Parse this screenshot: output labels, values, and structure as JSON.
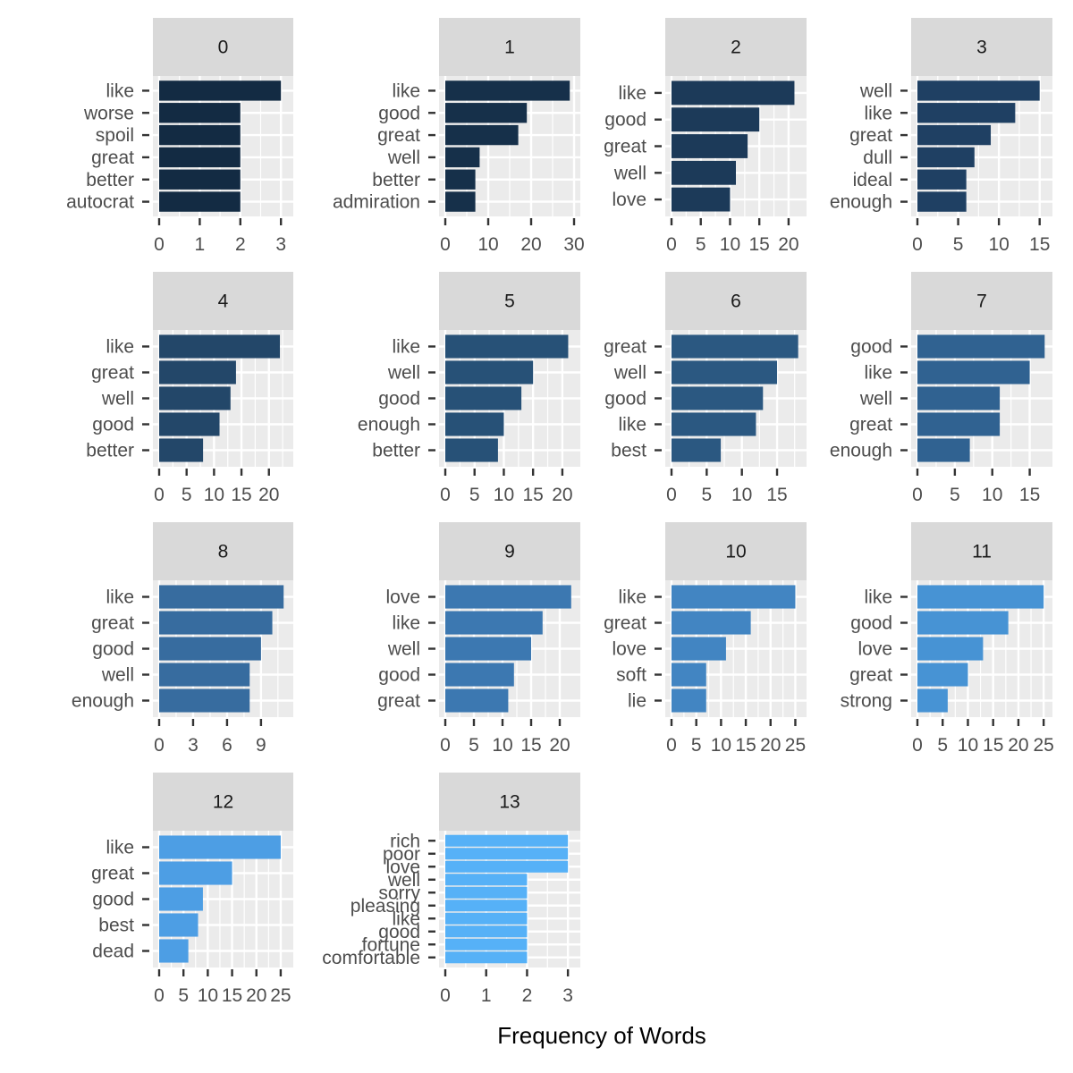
{
  "chart_data": {
    "type": "bar",
    "orientation": "horizontal",
    "layout": "facet-grid",
    "facet_columns": 4,
    "xlabel": "Frequency of Words",
    "ylabel": "",
    "grid": true,
    "panel_background": "#ebebeb",
    "strip_background": "#d9d9d9",
    "bar_color_gradient": [
      "#132b43",
      "#56b1f7"
    ],
    "panels": [
      {
        "label": "0",
        "color": "#132b43",
        "xlim": [
          0,
          3.15
        ],
        "ticks": [
          0,
          1,
          2,
          3
        ],
        "tick_labels": [
          "0",
          "1",
          "2",
          "3"
        ],
        "categories": [
          "like",
          "worse",
          "spoil",
          "great",
          "better",
          "autocrat"
        ],
        "values": [
          3,
          2,
          2,
          2,
          2,
          2
        ]
      },
      {
        "label": "1",
        "color": "#16304a",
        "xlim": [
          0,
          30
        ],
        "ticks": [
          0,
          10,
          20,
          30
        ],
        "tick_labels": [
          "0",
          "10",
          "20",
          "30"
        ],
        "categories": [
          "like",
          "good",
          "great",
          "well",
          "better",
          "admiration"
        ],
        "values": [
          29,
          19,
          17,
          8,
          7,
          7
        ]
      },
      {
        "label": "2",
        "color": "#1c3a59",
        "xlim": [
          0,
          22
        ],
        "ticks": [
          0,
          5,
          10,
          15,
          20
        ],
        "tick_labels": [
          "0",
          "5",
          "10",
          "15",
          "20"
        ],
        "categories": [
          "like",
          "good",
          "great",
          "well",
          "love"
        ],
        "values": [
          21,
          15,
          13,
          11,
          10
        ]
      },
      {
        "label": "3",
        "color": "#1f4063",
        "xlim": [
          0,
          15.8
        ],
        "ticks": [
          0,
          5,
          10,
          15
        ],
        "tick_labels": [
          "0",
          "5",
          "10",
          "15"
        ],
        "categories": [
          "well",
          "like",
          "great",
          "dull",
          "ideal",
          "enough"
        ],
        "values": [
          15,
          12,
          9,
          7,
          6,
          6
        ]
      },
      {
        "label": "4",
        "color": "#234769",
        "xlim": [
          0,
          23.3
        ],
        "ticks": [
          0,
          5,
          10,
          15,
          20
        ],
        "tick_labels": [
          "0",
          "5",
          "10",
          "15",
          "20"
        ],
        "categories": [
          "like",
          "great",
          "well",
          "good",
          "better"
        ],
        "values": [
          22,
          14,
          13,
          11,
          8
        ]
      },
      {
        "label": "5",
        "color": "#275177",
        "xlim": [
          0,
          22
        ],
        "ticks": [
          0,
          5,
          10,
          15,
          20
        ],
        "tick_labels": [
          "0",
          "5",
          "10",
          "15",
          "20"
        ],
        "categories": [
          "like",
          "well",
          "good",
          "enough",
          "better"
        ],
        "values": [
          21,
          15,
          13,
          10,
          9
        ]
      },
      {
        "label": "6",
        "color": "#2b5881",
        "xlim": [
          0,
          18.3
        ],
        "ticks": [
          0,
          5,
          10,
          15
        ],
        "tick_labels": [
          "0",
          "5",
          "10",
          "15"
        ],
        "categories": [
          "great",
          "well",
          "good",
          "like",
          "best"
        ],
        "values": [
          18,
          15,
          13,
          12,
          7
        ]
      },
      {
        "label": "7",
        "color": "#306291",
        "xlim": [
          0,
          17.2
        ],
        "ticks": [
          0,
          5,
          10,
          15
        ],
        "tick_labels": [
          "0",
          "5",
          "10",
          "15"
        ],
        "categories": [
          "good",
          "like",
          "well",
          "great",
          "enough"
        ],
        "values": [
          17,
          15,
          11,
          11,
          7
        ]
      },
      {
        "label": "8",
        "color": "#376c9f",
        "xlim": [
          0,
          11.3
        ],
        "ticks": [
          0,
          3,
          6,
          9
        ],
        "tick_labels": [
          "0",
          "3",
          "6",
          "9"
        ],
        "categories": [
          "like",
          "great",
          "good",
          "well",
          "enough"
        ],
        "values": [
          11,
          10,
          9,
          8,
          8
        ]
      },
      {
        "label": "9",
        "color": "#3c78b1",
        "xlim": [
          0,
          22.5
        ],
        "ticks": [
          0,
          5,
          10,
          15,
          20
        ],
        "tick_labels": [
          "0",
          "5",
          "10",
          "15",
          "20"
        ],
        "categories": [
          "love",
          "like",
          "well",
          "good",
          "great"
        ],
        "values": [
          22,
          17,
          15,
          12,
          11
        ]
      },
      {
        "label": "10",
        "color": "#4285c2",
        "xlim": [
          0,
          26
        ],
        "ticks": [
          0,
          5,
          10,
          15,
          20,
          25
        ],
        "tick_labels": [
          "0",
          "5",
          "10",
          "15",
          "20",
          "25"
        ],
        "categories": [
          "like",
          "great",
          "love",
          "soft",
          "lie"
        ],
        "values": [
          25,
          16,
          11,
          7,
          7
        ]
      },
      {
        "label": "11",
        "color": "#4793d4",
        "xlim": [
          0,
          25.5
        ],
        "ticks": [
          0,
          5,
          10,
          15,
          20,
          25
        ],
        "tick_labels": [
          "0",
          "5",
          "10",
          "15",
          "20",
          "25"
        ],
        "categories": [
          "like",
          "good",
          "love",
          "great",
          "strong"
        ],
        "values": [
          25,
          18,
          13,
          10,
          6
        ]
      },
      {
        "label": "12",
        "color": "#4d9ee4",
        "xlim": [
          0,
          26.3
        ],
        "ticks": [
          0,
          5,
          10,
          15,
          20,
          25
        ],
        "tick_labels": [
          "0",
          "5",
          "10",
          "15",
          "20",
          "25"
        ],
        "categories": [
          "like",
          "great",
          "good",
          "best",
          "dead"
        ],
        "values": [
          25,
          15,
          9,
          8,
          6
        ]
      },
      {
        "label": "13",
        "color": "#56b1f7",
        "xlim": [
          0,
          3.15
        ],
        "ticks": [
          0,
          1,
          2,
          3
        ],
        "tick_labels": [
          "0",
          "1",
          "2",
          "3"
        ],
        "categories": [
          "rich",
          "poor",
          "love",
          "well",
          "sorry",
          "pleasing",
          "like",
          "good",
          "fortune",
          "comfortable"
        ],
        "values": [
          3,
          3,
          3,
          2,
          2,
          2,
          2,
          2,
          2,
          2
        ]
      }
    ]
  }
}
